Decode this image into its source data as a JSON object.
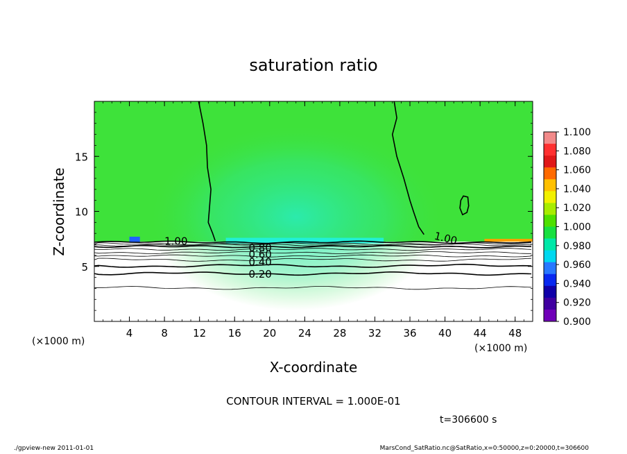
{
  "chart_data": {
    "type": "heatmap",
    "title": "saturation ratio",
    "xlabel": "X-coordinate",
    "ylabel": "Z-coordinate",
    "x_unit_left": "(×1000 m)",
    "x_unit_right": "(×1000 m)",
    "xlim": [
      0,
      50
    ],
    "ylim": [
      0,
      20
    ],
    "x_ticks": [
      4,
      8,
      12,
      16,
      20,
      24,
      28,
      32,
      36,
      40,
      44,
      48
    ],
    "y_ticks": [
      5,
      10,
      15
    ],
    "colorbar": {
      "ticks": [
        "1.100",
        "1.080",
        "1.060",
        "1.040",
        "1.020",
        "1.000",
        "0.980",
        "0.960",
        "0.940",
        "0.920",
        "0.900"
      ],
      "colors": [
        "#f28a8a",
        "#ff3030",
        "#e01818",
        "#ff6a00",
        "#ffc000",
        "#f2f000",
        "#a8ec00",
        "#4ee000",
        "#18e040",
        "#00e8a8",
        "#00d8f0",
        "#2878ff",
        "#0828f0",
        "#1000a8",
        "#4000a0",
        "#7000b8"
      ]
    },
    "fill_colors": {
      "lower": "#ffffff",
      "main": "#3ee23a",
      "lighter": "#52e44c",
      "center": "#2cecb0",
      "cyan": "#20f0e0",
      "orange": "#ffa000",
      "blue": "#2060ff"
    },
    "contour_labels": [
      {
        "text": "1.00",
        "x": 8.0,
        "z": 7.3,
        "rotate": 0
      },
      {
        "text": "1.00",
        "x": 38.8,
        "z": 7.8,
        "rotate": 14
      },
      {
        "text": "0.80",
        "x": 17.6,
        "z": 6.7,
        "rotate": 0
      },
      {
        "text": "0.60",
        "x": 17.6,
        "z": 6.1,
        "rotate": 0
      },
      {
        "text": "0.40",
        "x": 17.6,
        "z": 5.4,
        "rotate": 0
      },
      {
        "text": "0.20",
        "x": 17.6,
        "z": 4.3,
        "rotate": 0
      }
    ],
    "horizontal_contours_z": [
      7.2,
      7.05,
      6.95,
      6.8,
      6.55,
      6.25,
      5.95,
      5.6,
      5.05,
      4.35,
      3.05
    ],
    "vertical_contour_left": [
      [
        11.9,
        20
      ],
      [
        12.4,
        18
      ],
      [
        12.8,
        16
      ],
      [
        12.9,
        14
      ],
      [
        13.3,
        12
      ],
      [
        13.1,
        10
      ],
      [
        13.0,
        9
      ],
      [
        13.5,
        8
      ],
      [
        13.8,
        7.3
      ]
    ],
    "vertical_contour_right": [
      [
        34.2,
        20
      ],
      [
        34.5,
        18.5
      ],
      [
        34.0,
        17
      ],
      [
        34.5,
        15
      ],
      [
        35.3,
        13
      ],
      [
        36.0,
        11
      ],
      [
        36.4,
        10
      ],
      [
        37.0,
        8.6
      ],
      [
        37.6,
        7.9
      ]
    ],
    "closed_contour": [
      [
        42.1,
        11.4
      ],
      [
        42.6,
        11.3
      ],
      [
        42.7,
        10.5
      ],
      [
        42.5,
        9.9
      ],
      [
        42.0,
        9.7
      ],
      [
        41.7,
        10.3
      ],
      [
        41.8,
        11.0
      ]
    ],
    "contour_interval_text": "CONTOUR INTERVAL = 1.000E-01",
    "time_text": "t=306600 s"
  },
  "footer": {
    "left": "./gpview-new   2011-01-01",
    "right": "MarsCond_SatRatio.nc@SatRatio,x=0:50000,z=0:20000,t=306600"
  }
}
